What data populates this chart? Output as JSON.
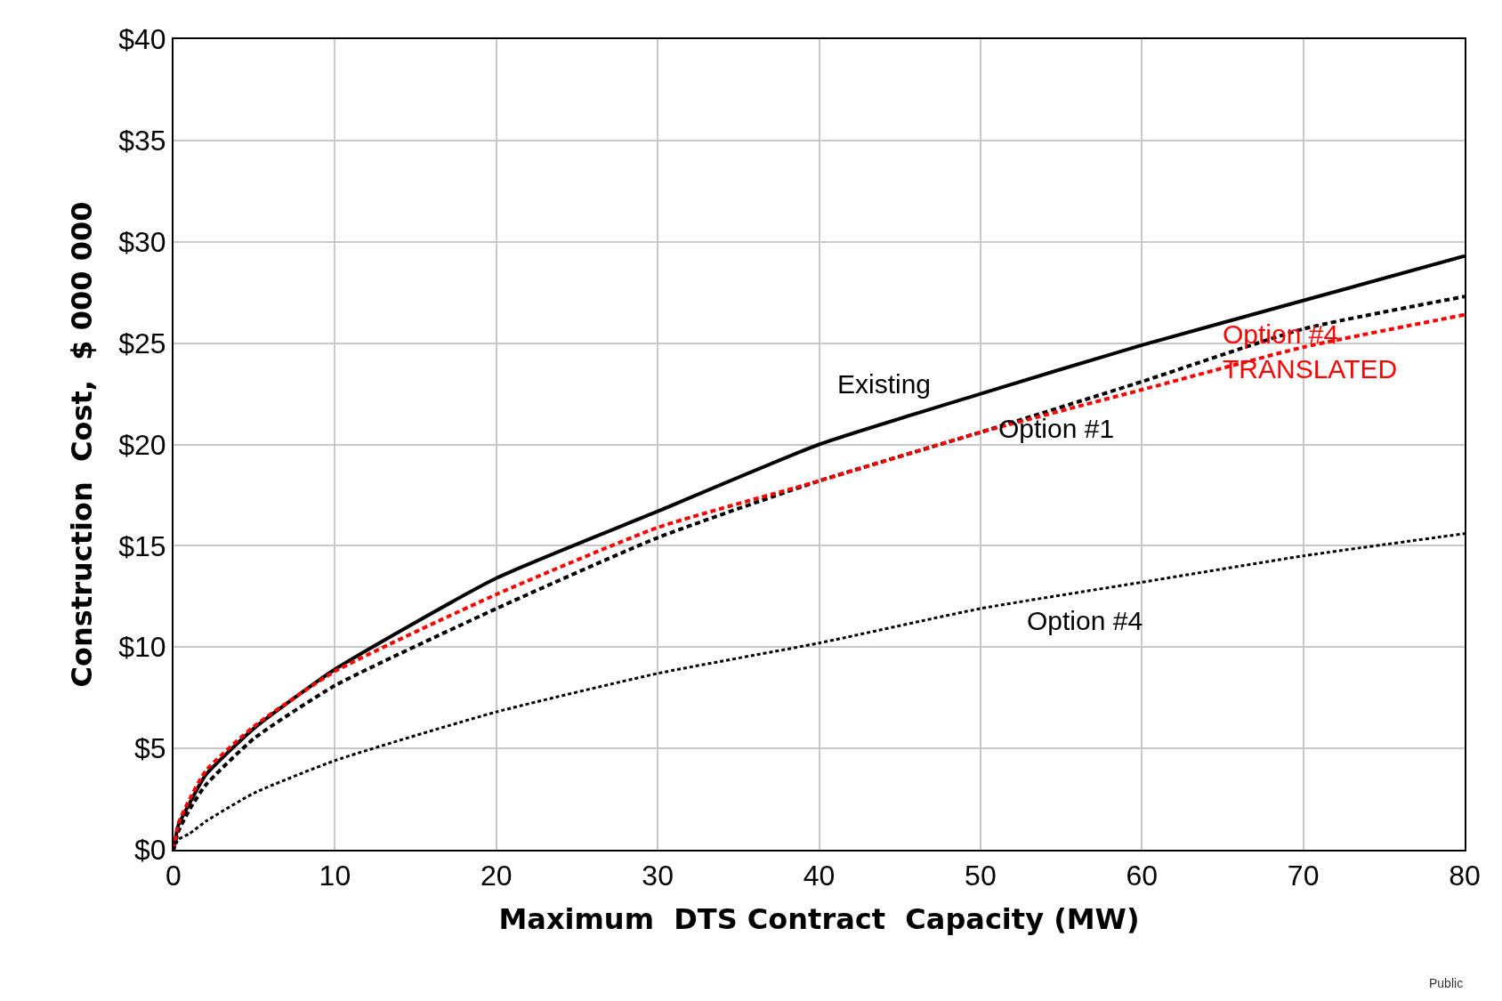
{
  "chart_data": {
    "type": "line",
    "xlabel": "Maximum  DTS Contract  Capacity (MW)",
    "ylabel": "Construction  Cost,  $ 000 000",
    "xlim": [
      0,
      80
    ],
    "xticks": [
      0,
      10,
      20,
      30,
      40,
      50,
      60,
      70,
      80
    ],
    "ylim": [
      0,
      40
    ],
    "yticks": [
      {
        "value": 0,
        "label": "$0"
      },
      {
        "value": 5,
        "label": "$5"
      },
      {
        "value": 10,
        "label": "$10"
      },
      {
        "value": 15,
        "label": "$15"
      },
      {
        "value": 20,
        "label": "$20"
      },
      {
        "value": 25,
        "label": "$25"
      },
      {
        "value": 30,
        "label": "$30"
      },
      {
        "value": 35,
        "label": "$35"
      },
      {
        "value": 40,
        "label": "$40"
      }
    ],
    "grid": true,
    "marker": "none",
    "x": [
      0,
      0.3,
      1,
      2,
      5,
      10,
      20,
      30,
      40,
      50,
      60,
      70,
      80
    ],
    "series": [
      {
        "color": "#000000",
        "line_style": "solid",
        "values": [
          0,
          1.2,
          2.3,
          3.7,
          6.0,
          8.9,
          13.4,
          16.7,
          20.0,
          22.5,
          24.9,
          27.1,
          29.3
        ]
      },
      {
        "color": "#000000",
        "line_style": "dashed",
        "values": [
          0,
          0.9,
          2.0,
          3.2,
          5.5,
          8.1,
          11.9,
          15.4,
          18.2,
          20.6,
          23.1,
          25.7,
          27.3
        ]
      },
      {
        "color": "#ff0000",
        "line_style": "dashed",
        "values": [
          0,
          1.3,
          2.5,
          3.9,
          6.1,
          8.8,
          12.6,
          15.9,
          18.2,
          20.6,
          22.7,
          24.8,
          26.4
        ]
      },
      {
        "color": "#000000",
        "line_style": "dotted",
        "values": [
          0,
          0.5,
          0.8,
          1.4,
          2.8,
          4.4,
          6.8,
          8.7,
          10.2,
          11.9,
          13.2,
          14.5,
          15.6
        ]
      }
    ],
    "annotations": [
      "Existing",
      "Option #1",
      "Option #4\nTRANSLATED",
      "Option #4",
      "Public"
    ]
  }
}
